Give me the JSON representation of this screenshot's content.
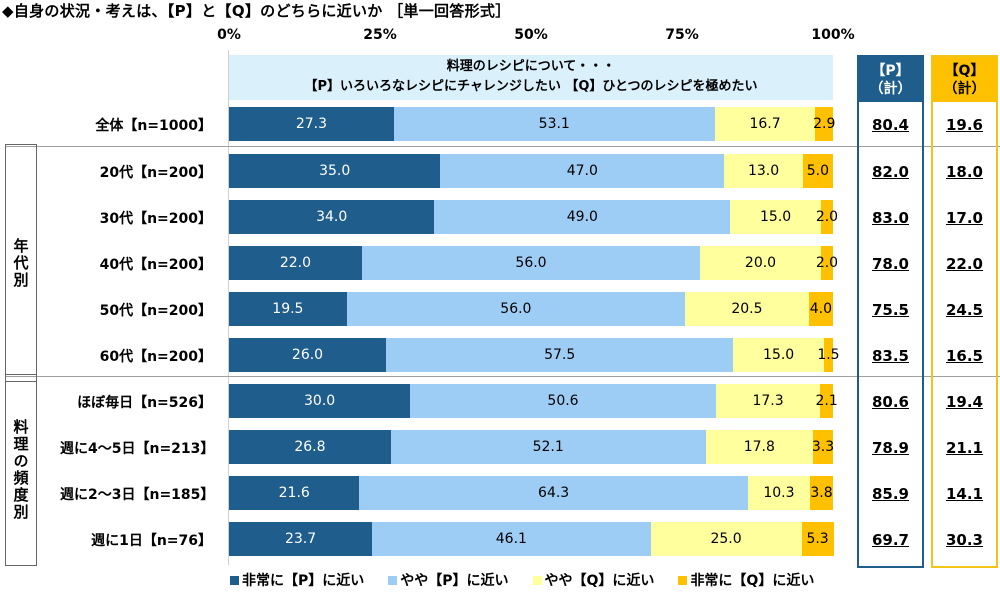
{
  "title": "◆自身の状況・考えは、【P】と【Q】のどちらに近いか ［単一回答形式］",
  "chart_data": {
    "type": "bar",
    "orientation": "horizontal",
    "stacked": true,
    "title": "◆自身の状況・考えは、【P】と【Q】のどちらに近いか ［単一回答形式］",
    "subtitle_lines": [
      "料理のレシピについて・・・",
      "【P】いろいろなレシピにチャレンジしたい 【Q】ひとつのレシピを極めたい"
    ],
    "xlim": [
      0,
      100
    ],
    "x_ticks": [
      "0%",
      "25%",
      "50%",
      "75%",
      "100%"
    ],
    "categories": [
      "全体【n=1000】",
      "20代【n=200】",
      "30代【n=200】",
      "40代【n=200】",
      "50代【n=200】",
      "60代【n=200】",
      "ほぼ毎日【n=526】",
      "週に4～5日【n=213】",
      "週に2～3日【n=185】",
      "週に1日【n=76】"
    ],
    "groups": [
      {
        "label": "年代別",
        "rows": [
          1,
          5
        ]
      },
      {
        "label": "料理の頻度別",
        "rows": [
          6,
          9
        ]
      }
    ],
    "series": [
      {
        "name": "非常に【P】に近い",
        "color": "#1f5d8c",
        "text_color": "#ffffff",
        "values": [
          27.3,
          35.0,
          34.0,
          22.0,
          19.5,
          26.0,
          30.0,
          26.8,
          21.6,
          23.7
        ]
      },
      {
        "name": "やや【P】に近い",
        "color": "#9dcdf5",
        "text_color": "#000000",
        "values": [
          53.1,
          47.0,
          49.0,
          56.0,
          56.0,
          57.5,
          50.6,
          52.1,
          64.3,
          46.1
        ]
      },
      {
        "name": "やや【Q】に近い",
        "color": "#ffff9e",
        "text_color": "#000000",
        "values": [
          16.7,
          13.0,
          15.0,
          20.0,
          20.5,
          15.0,
          17.3,
          17.8,
          10.3,
          25.0
        ]
      },
      {
        "name": "非常に【Q】に近い",
        "color": "#ffc000",
        "text_color": "#000000",
        "values": [
          2.9,
          5.0,
          2.0,
          2.0,
          4.0,
          1.5,
          2.1,
          3.3,
          3.8,
          5.3
        ]
      }
    ],
    "totals": {
      "p_header": [
        "【P】",
        "（計）"
      ],
      "q_header": [
        "【Q】",
        "（計）"
      ],
      "p_values": [
        "80.4",
        "82.0",
        "83.0",
        "78.0",
        "75.5",
        "83.5",
        "80.6",
        "78.9",
        "85.9",
        "69.7"
      ],
      "q_values": [
        "19.6",
        "18.0",
        "17.0",
        "22.0",
        "24.5",
        "16.5",
        "19.4",
        "21.1",
        "14.1",
        "30.3"
      ]
    },
    "legend_position": "bottom"
  }
}
